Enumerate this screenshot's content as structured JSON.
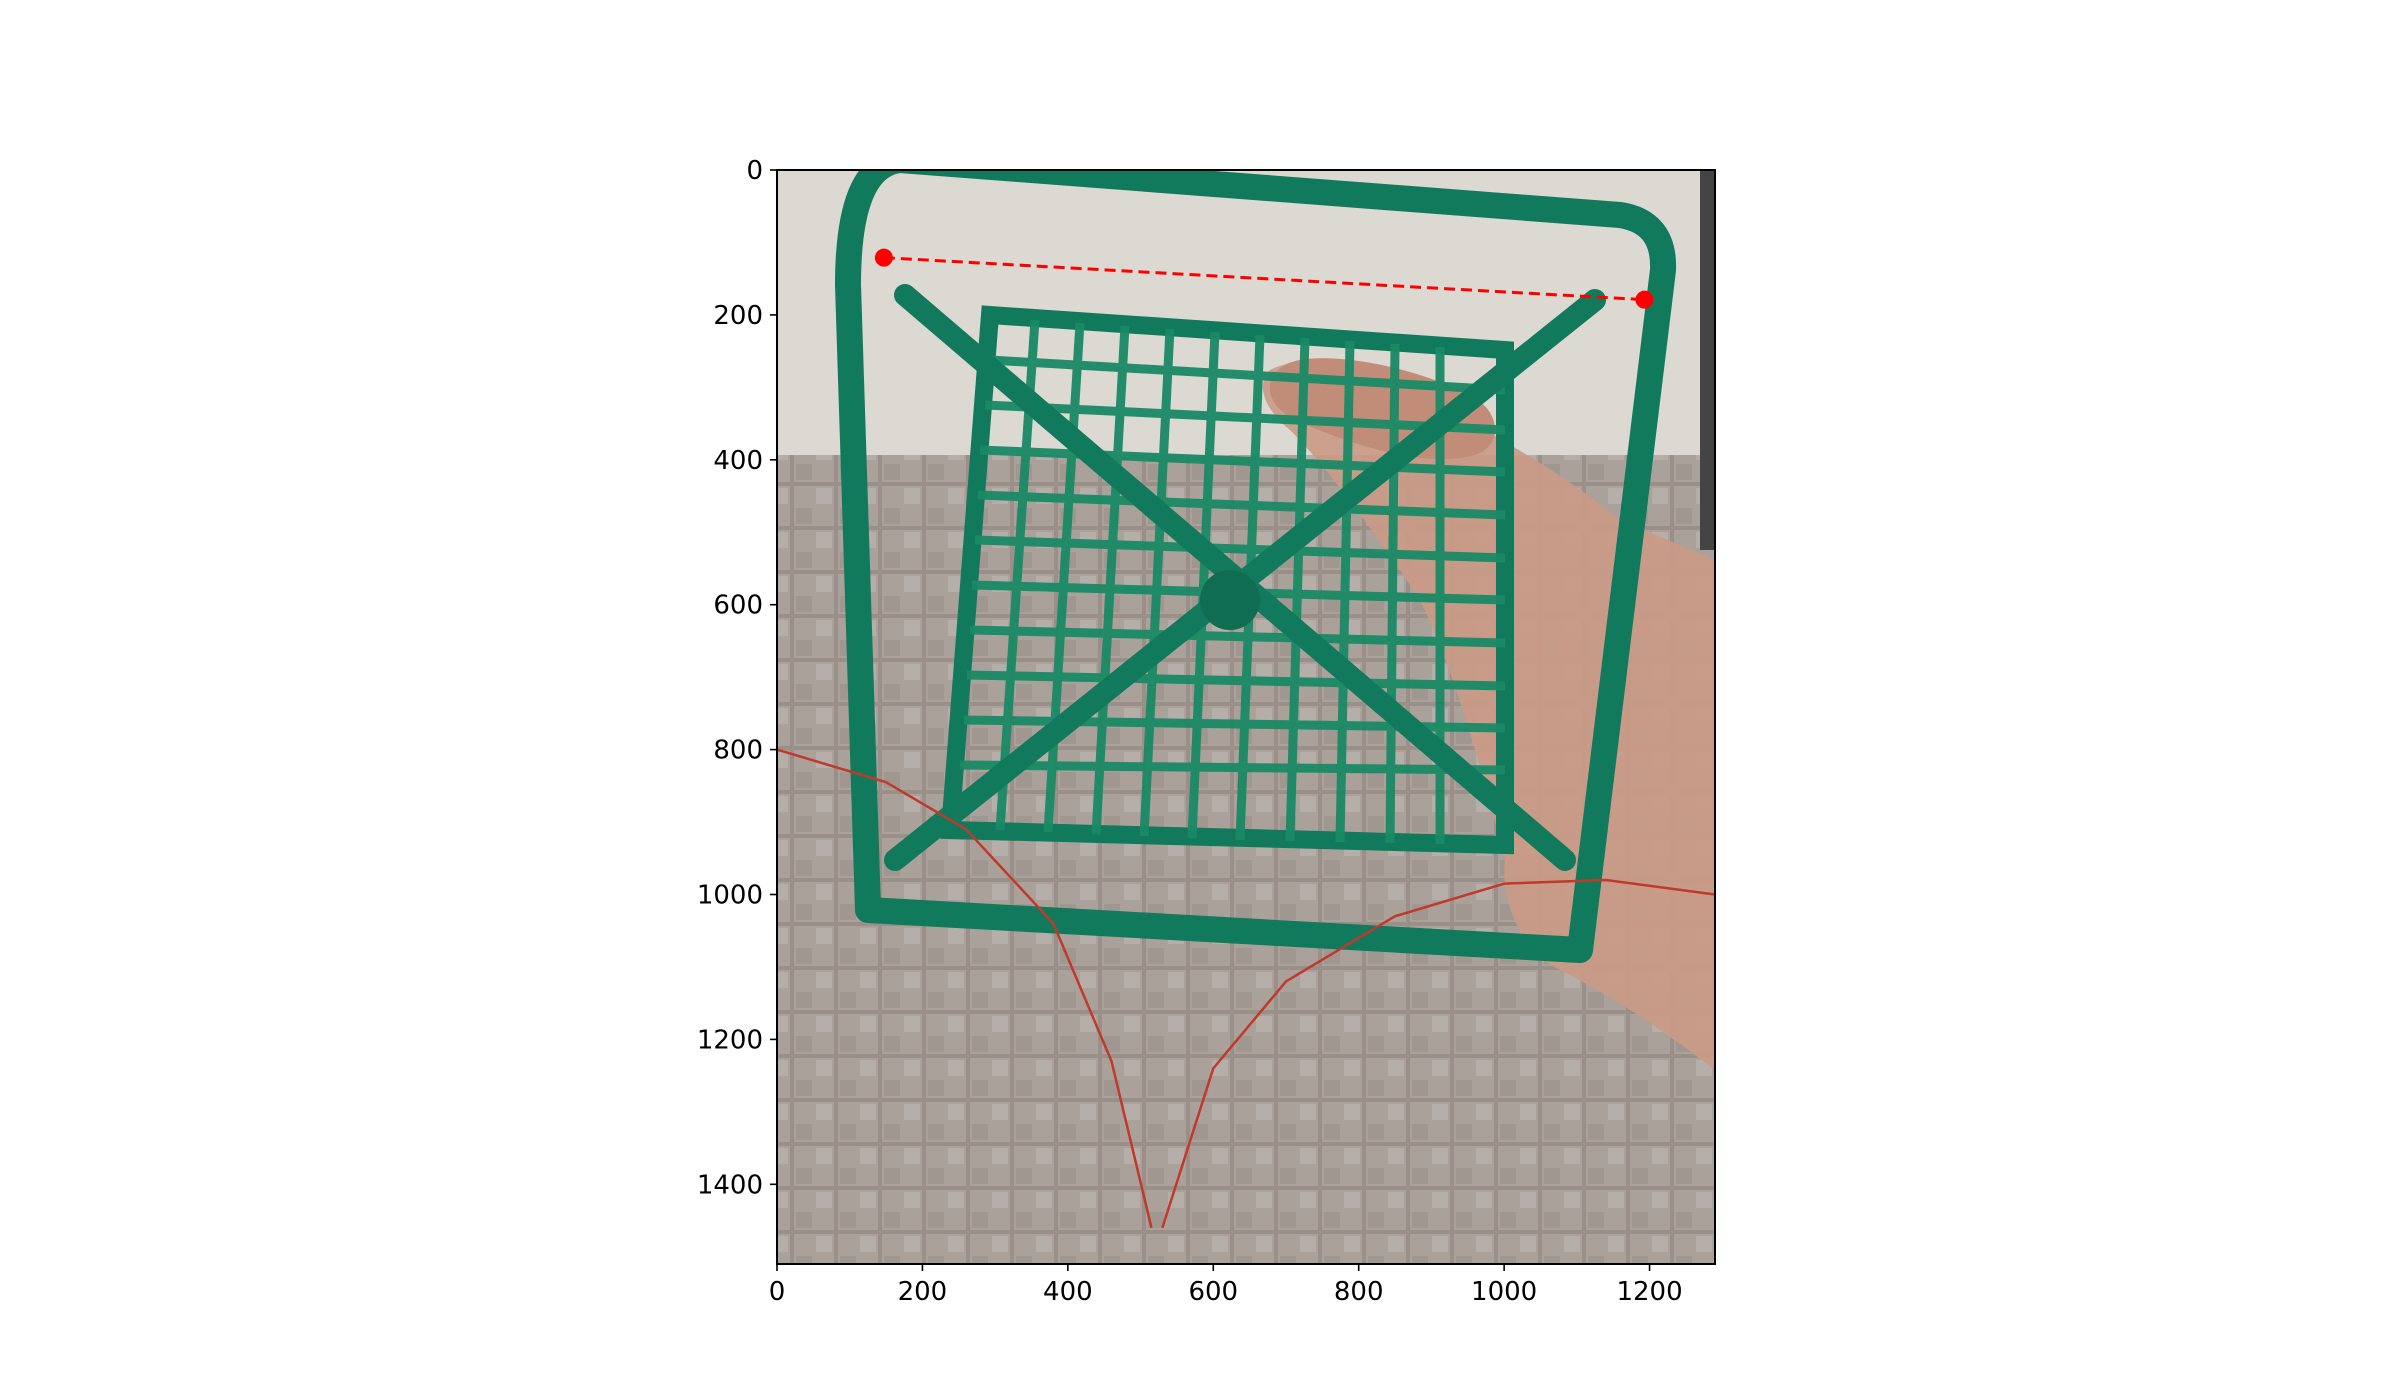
{
  "chart_data": {
    "type": "scatter",
    "title": "",
    "xlabel": "",
    "ylabel": "",
    "xlim": [
      0,
      1290
    ],
    "ylim": [
      1510,
      0
    ],
    "y_inverted": true,
    "grid": false,
    "x_ticks": [
      0,
      200,
      400,
      600,
      800,
      1000,
      1200
    ],
    "y_ticks": [
      0,
      200,
      400,
      600,
      800,
      1000,
      1200,
      1400
    ],
    "background_image": "photo-of-green-plastic-mesh-basket-held-in-hand-over-tiled-wall",
    "series": [
      {
        "marker": "circle",
        "linestyle": "dashed",
        "color": "#ff0000",
        "points": [
          {
            "x": 147,
            "y": 121
          },
          {
            "x": 1193,
            "y": 179
          }
        ]
      }
    ],
    "curves": [
      {
        "color": "#c0392b",
        "points": [
          [
            0,
            800
          ],
          [
            150,
            845
          ],
          [
            260,
            910
          ],
          [
            380,
            1040
          ],
          [
            460,
            1230
          ],
          [
            515,
            1460
          ]
        ]
      },
      {
        "color": "#c0392b",
        "points": [
          [
            530,
            1460
          ],
          [
            600,
            1240
          ],
          [
            700,
            1120
          ],
          [
            850,
            1030
          ],
          [
            1000,
            985
          ],
          [
            1140,
            980
          ],
          [
            1290,
            1000
          ]
        ]
      }
    ]
  }
}
